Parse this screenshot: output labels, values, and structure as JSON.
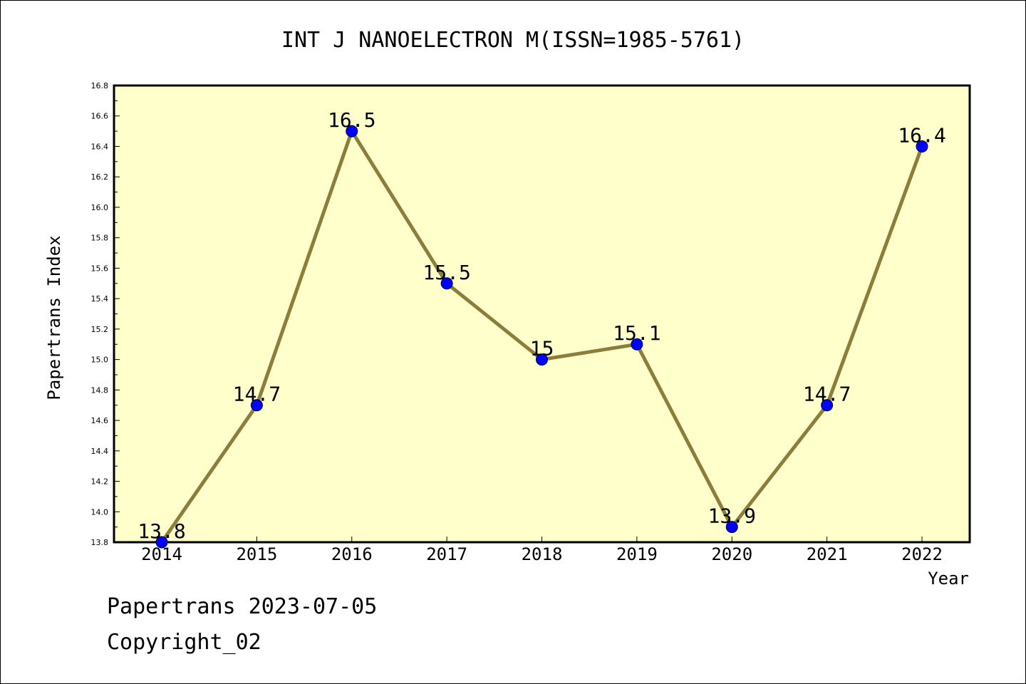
{
  "chart_data": {
    "type": "line",
    "title": "INT J NANOELECTRON M(ISSN=1985-5761)",
    "xlabel": "Year",
    "ylabel": "Papertrans Index",
    "x": [
      "2014",
      "2015",
      "2016",
      "2017",
      "2018",
      "2019",
      "2020",
      "2021",
      "2022"
    ],
    "series": [
      {
        "values": [
          13.8,
          14.7,
          16.5,
          15.5,
          15.0,
          15.1,
          13.9,
          14.7,
          16.4
        ],
        "labels": [
          "13.8",
          "14.7",
          "16.5",
          "15.5",
          "15",
          "15.1",
          "13.9",
          "14.7",
          "16.4"
        ]
      }
    ],
    "ylim": [
      13.8,
      16.8
    ],
    "yticks": [
      "13.8",
      "14.0",
      "14.2",
      "14.4",
      "14.6",
      "14.8",
      "15.0",
      "15.2",
      "15.4",
      "15.6",
      "15.8",
      "16.0",
      "16.2",
      "16.4",
      "16.6",
      "16.8"
    ],
    "grid": false,
    "colors": {
      "plot_background": "#ffffcc",
      "line": "#8b7d3a",
      "marker": "#0000ff"
    }
  },
  "footer": {
    "line1": "Papertrans 2023-07-05",
    "line2": "Copyright_02"
  }
}
